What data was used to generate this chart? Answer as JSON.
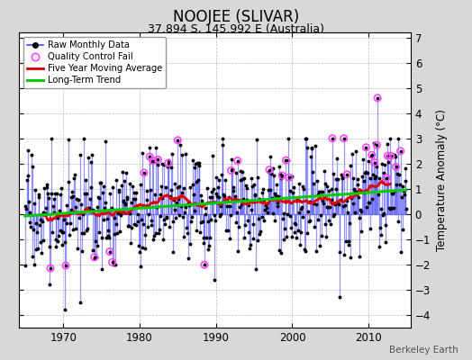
{
  "title": "NOOJEE (SLIVAR)",
  "subtitle": "37.894 S, 145.992 E (Australia)",
  "ylabel": "Temperature Anomaly (°C)",
  "watermark": "Berkeley Earth",
  "ylim": [
    -4.5,
    7.2
  ],
  "yticks": [
    -4,
    -3,
    -2,
    -1,
    0,
    1,
    2,
    3,
    4,
    5,
    6,
    7
  ],
  "year_start": 1965,
  "year_end": 2014,
  "xlim_start": 1964.2,
  "xlim_end": 2015.5,
  "xticks": [
    1970,
    1980,
    1990,
    2000,
    2010
  ],
  "bg_color": "#d8d8d8",
  "plot_bg_color": "#ffffff",
  "line_color": "#4444ff",
  "moving_avg_color": "#dd0000",
  "trend_color": "#00cc00",
  "qc_fail_color": "#ff44ff",
  "title_fontsize": 12,
  "subtitle_fontsize": 9,
  "seed": 17
}
